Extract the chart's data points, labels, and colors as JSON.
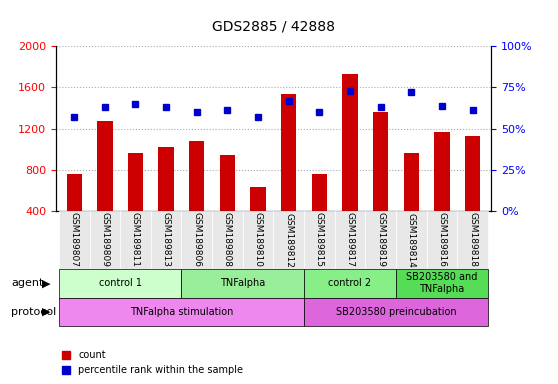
{
  "title": "GDS2885 / 42888",
  "samples": [
    "GSM189807",
    "GSM189809",
    "GSM189811",
    "GSM189813",
    "GSM189806",
    "GSM189808",
    "GSM189810",
    "GSM189812",
    "GSM189815",
    "GSM189817",
    "GSM189819",
    "GSM189814",
    "GSM189816",
    "GSM189818"
  ],
  "counts": [
    760,
    1270,
    960,
    1020,
    1080,
    940,
    630,
    1540,
    760,
    1730,
    1360,
    960,
    1170,
    1130
  ],
  "percentiles": [
    57,
    63,
    65,
    63,
    60,
    61,
    57,
    67,
    60,
    73,
    63,
    72,
    64,
    61
  ],
  "count_ylim": [
    400,
    2000
  ],
  "pct_ylim": [
    0,
    100
  ],
  "count_yticks": [
    400,
    800,
    1200,
    1600,
    2000
  ],
  "pct_yticks": [
    0,
    25,
    50,
    75,
    100
  ],
  "bar_color": "#cc0000",
  "dot_color": "#0000cc",
  "agent_groups": [
    {
      "label": "control 1",
      "start": 0,
      "end": 4,
      "color": "#ccffcc"
    },
    {
      "label": "TNFalpha",
      "start": 4,
      "end": 8,
      "color": "#99ee99"
    },
    {
      "label": "control 2",
      "start": 8,
      "end": 11,
      "color": "#88ee88"
    },
    {
      "label": "SB203580 and\nTNFalpha",
      "start": 11,
      "end": 14,
      "color": "#55dd55"
    }
  ],
  "protocol_groups": [
    {
      "label": "TNFalpha stimulation",
      "start": 0,
      "end": 8,
      "color": "#ee88ee"
    },
    {
      "label": "SB203580 preincubation",
      "start": 8,
      "end": 14,
      "color": "#dd66dd"
    }
  ],
  "xlabel_rotation": 270,
  "grid_color": "#aaaaaa",
  "bg_color": "#e8e8e8"
}
